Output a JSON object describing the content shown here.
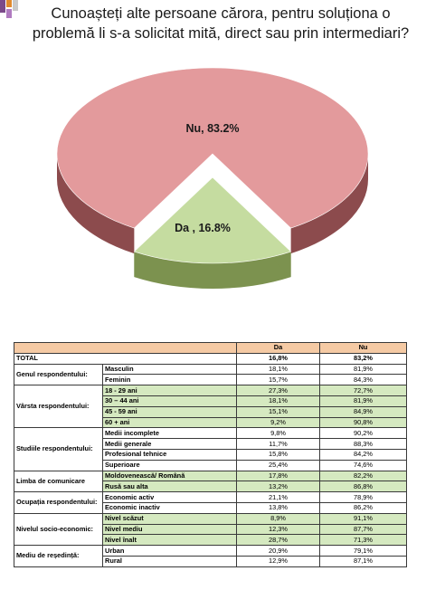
{
  "title": "Cunoașteți alte persoane cărora, pentru soluționa o problemă li s-a solicitat mită, direct sau prin intermediari?",
  "colors": {
    "nu": "#e39a9c",
    "nu_side": "#8c4b4d",
    "da": "#c5dca0",
    "da_side": "#7c924f",
    "header": "#f5caa4",
    "row_shade": "#d5e9c0"
  },
  "chart_data": {
    "type": "pie",
    "title": "Cunoașteți alte persoane cărora, pentru soluționa o problemă li s-a solicitat mită, direct sau prin intermediari?",
    "slices": [
      {
        "label": "Nu",
        "value": 83.2,
        "text": "Nu, 83.2%"
      },
      {
        "label": "Da",
        "value": 16.8,
        "text": "Da , 16.8%"
      }
    ]
  },
  "table": {
    "headers": [
      "Da",
      "Nu"
    ],
    "total": {
      "label": "TOTAL",
      "da": "16,8%",
      "nu": "83,2%"
    },
    "groups": [
      {
        "label": "Genul respondentului:",
        "rows": [
          {
            "label": "Masculin",
            "da": "18,1%",
            "nu": "81,9%"
          },
          {
            "label": "Feminin",
            "da": "15,7%",
            "nu": "84,3%"
          }
        ]
      },
      {
        "label": "Vârsta respondentului:",
        "rows": [
          {
            "label": "18 - 29 ani",
            "da": "27,3%",
            "nu": "72,7%"
          },
          {
            "label": "30 – 44 ani",
            "da": "18,1%",
            "nu": "81,9%"
          },
          {
            "label": "45 - 59 ani",
            "da": "15,1%",
            "nu": "84,9%"
          },
          {
            "label": "60 + ani",
            "da": "9,2%",
            "nu": "90,8%"
          }
        ]
      },
      {
        "label": "Studiile respondentului:",
        "rows": [
          {
            "label": "Medii incomplete",
            "da": "9,8%",
            "nu": "90,2%"
          },
          {
            "label": "Medii generale",
            "da": "11,7%",
            "nu": "88,3%"
          },
          {
            "label": "Profesional tehnice",
            "da": "15,8%",
            "nu": "84,2%"
          },
          {
            "label": "Superioare",
            "da": "25,4%",
            "nu": "74,6%"
          }
        ]
      },
      {
        "label": "Limba de comunicare",
        "rows": [
          {
            "label": "Moldovenească/ Română",
            "da": "17,8%",
            "nu": "82,2%"
          },
          {
            "label": "Rusă sau alta",
            "da": "13,2%",
            "nu": "86,8%"
          }
        ]
      },
      {
        "label": "Ocupația respondentului:",
        "rows": [
          {
            "label": "Economic activ",
            "da": "21,1%",
            "nu": "78,9%"
          },
          {
            "label": "Economic inactiv",
            "da": "13,8%",
            "nu": "86,2%"
          }
        ]
      },
      {
        "label": "Nivelul socio-economic:",
        "rows": [
          {
            "label": "Nivel scăzut",
            "da": "8,9%",
            "nu": "91,1%"
          },
          {
            "label": "Nivel mediu",
            "da": "12,3%",
            "nu": "87,7%"
          },
          {
            "label": "Nivel înalt",
            "da": "28,7%",
            "nu": "71,3%"
          }
        ]
      },
      {
        "label": "Mediu de reședință:",
        "rows": [
          {
            "label": "Urban",
            "da": "20,9%",
            "nu": "79,1%"
          },
          {
            "label": "Rural",
            "da": "12,9%",
            "nu": "87,1%"
          }
        ]
      }
    ]
  }
}
